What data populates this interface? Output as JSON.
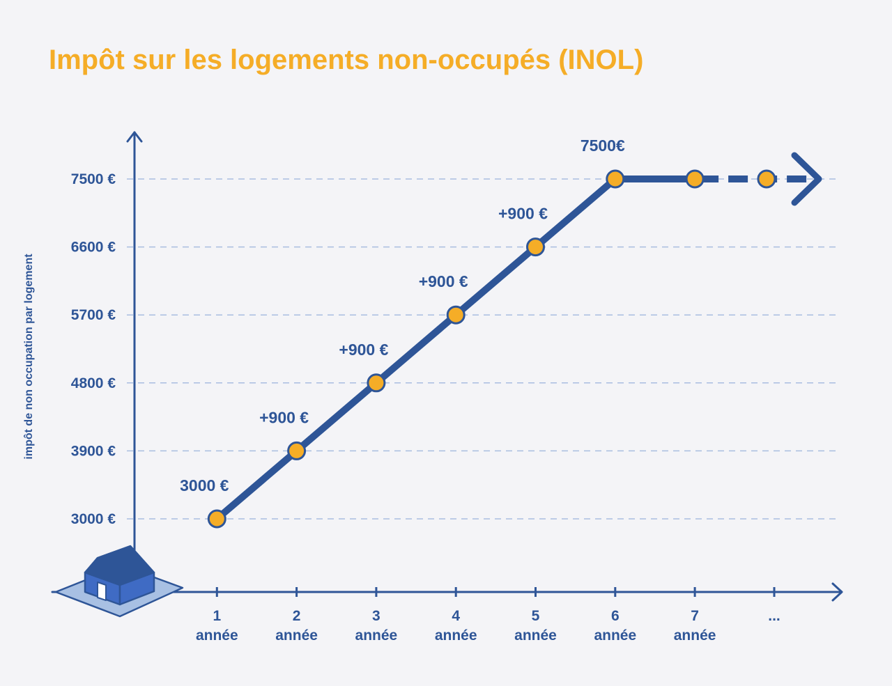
{
  "chart_data": {
    "type": "line",
    "title": "Impôt sur les logements non-occupés (INOL)",
    "ylabel": "impôt de non occupation par logement",
    "xlabel": "",
    "x_numbers": [
      "1",
      "2",
      "3",
      "4",
      "5",
      "6",
      "7",
      "..."
    ],
    "x_unit_label": "année",
    "y_ticks": [
      3000,
      3900,
      4800,
      5700,
      6600,
      7500
    ],
    "y_tick_labels": [
      "3000 €",
      "3900 €",
      "4800 €",
      "5700 €",
      "6600 €",
      "7500 €"
    ],
    "ylim": [
      2000,
      8000
    ],
    "grid": true,
    "series": [
      {
        "x": [
          1,
          2,
          3,
          4,
          5,
          6,
          7,
          7.9
        ],
        "values": [
          3000,
          3900,
          4800,
          5700,
          6600,
          7500,
          7500,
          7500
        ]
      }
    ],
    "annotations": [
      {
        "text": "3000 €",
        "x": 1
      },
      {
        "text": "+900 €",
        "x": 2
      },
      {
        "text": "+900 €",
        "x": 3
      },
      {
        "text": "+900 €",
        "x": 4
      },
      {
        "text": "+900 €",
        "x": 5
      },
      {
        "text": "7500€",
        "x": 6
      }
    ]
  },
  "colors": {
    "accent": "#f5ad27",
    "line": "#2e5597",
    "grid": "#a9bde0",
    "house_roof": "#2e5597",
    "house_wall": "#3f6bc4",
    "ground": "#a8c0e3"
  },
  "icon": "house-icon"
}
